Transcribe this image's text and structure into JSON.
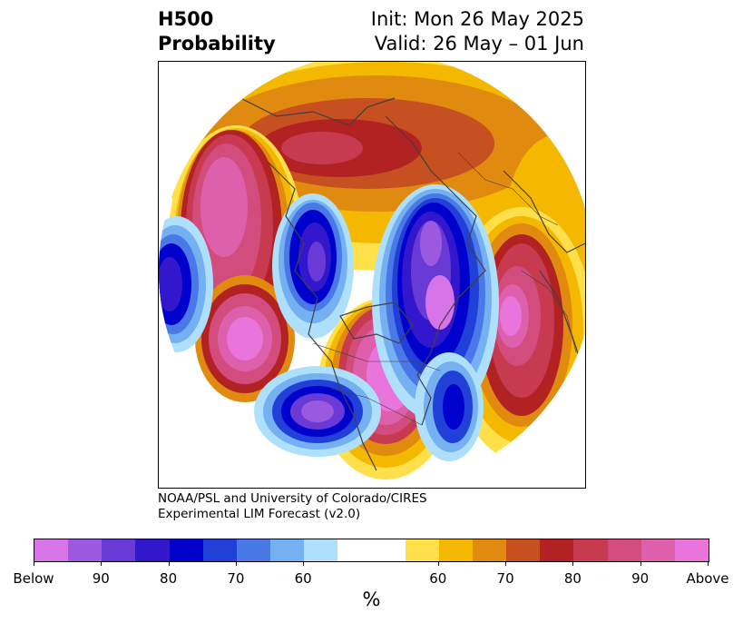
{
  "header": {
    "title_line1": "H500",
    "title_line2": "Probability",
    "init_text": "Init: Mon 26 May 2025",
    "valid_text": "Valid: 26 May – 01 Jun"
  },
  "credit": {
    "line1": "NOAA/PSL and University of Colorado/CIRES",
    "line2": "Experimental LIM Forecast (v2.0)"
  },
  "colorbar": {
    "unit": "%",
    "below_colors": [
      "#d774e8",
      "#9b59e0",
      "#6a3ad6",
      "#3317cc",
      "#0000cc",
      "#2040d8",
      "#4a78e6",
      "#74b0f2",
      "#aee0fc"
    ],
    "neutral_color": "#ffffff",
    "above_colors": [
      "#ffe04a",
      "#f5b800",
      "#e08a10",
      "#c75020",
      "#b22222",
      "#c73a50",
      "#d24d7e",
      "#de60ac",
      "#e874dc"
    ],
    "tick_labels": [
      "Below",
      "90",
      "80",
      "70",
      "60",
      "60",
      "70",
      "80",
      "90",
      "Above"
    ]
  },
  "map": {
    "projection": "north-polar-stereographic",
    "region": "Northern Hemisphere / North America",
    "field": "H500 probability anomalies"
  }
}
